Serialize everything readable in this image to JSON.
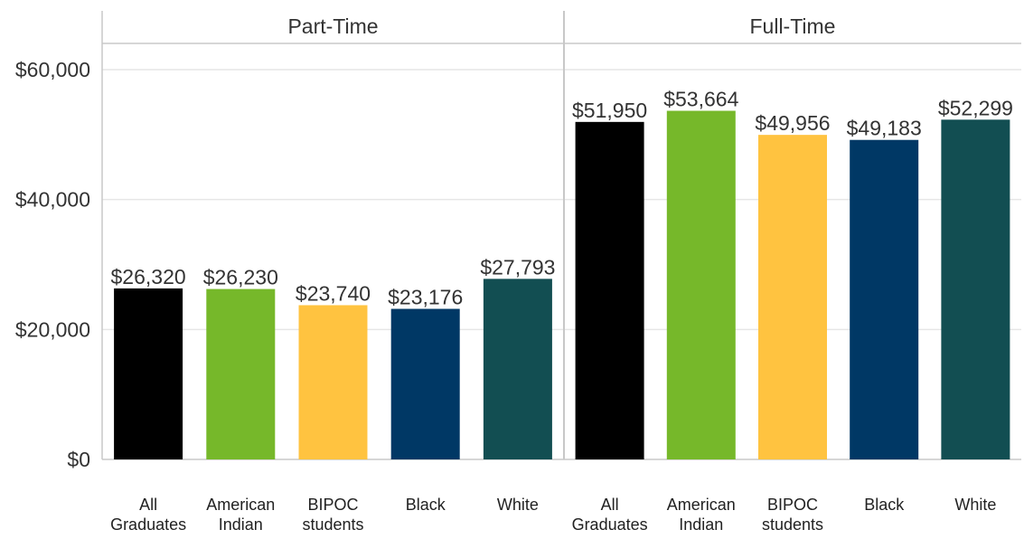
{
  "chart_data": {
    "type": "bar",
    "categories": [
      "All\nGraduates",
      "American\nIndian",
      "BIPOC\nstudents",
      "Black",
      "White"
    ],
    "yaxis": {
      "ylim": [
        0,
        60000
      ],
      "ticks": [
        0,
        20000,
        40000,
        60000
      ],
      "tick_labels": [
        "$0",
        "$20,000",
        "$40,000",
        "$60,000"
      ]
    },
    "grid": true,
    "colors": [
      "#000000",
      "#76b82a",
      "#ffc340",
      "#003865",
      "#124e52"
    ],
    "panels": [
      {
        "title": "Part-Time",
        "values": [
          26320,
          26230,
          23740,
          23176,
          27793
        ],
        "value_labels": [
          "$26,320",
          "$26,230",
          "$23,740",
          "$23,176",
          "$27,793"
        ]
      },
      {
        "title": "Full-Time",
        "values": [
          51950,
          53664,
          49956,
          49183,
          52299
        ],
        "value_labels": [
          "$51,950",
          "$53,664",
          "$49,956",
          "$49,183",
          "$52,299"
        ]
      }
    ]
  }
}
